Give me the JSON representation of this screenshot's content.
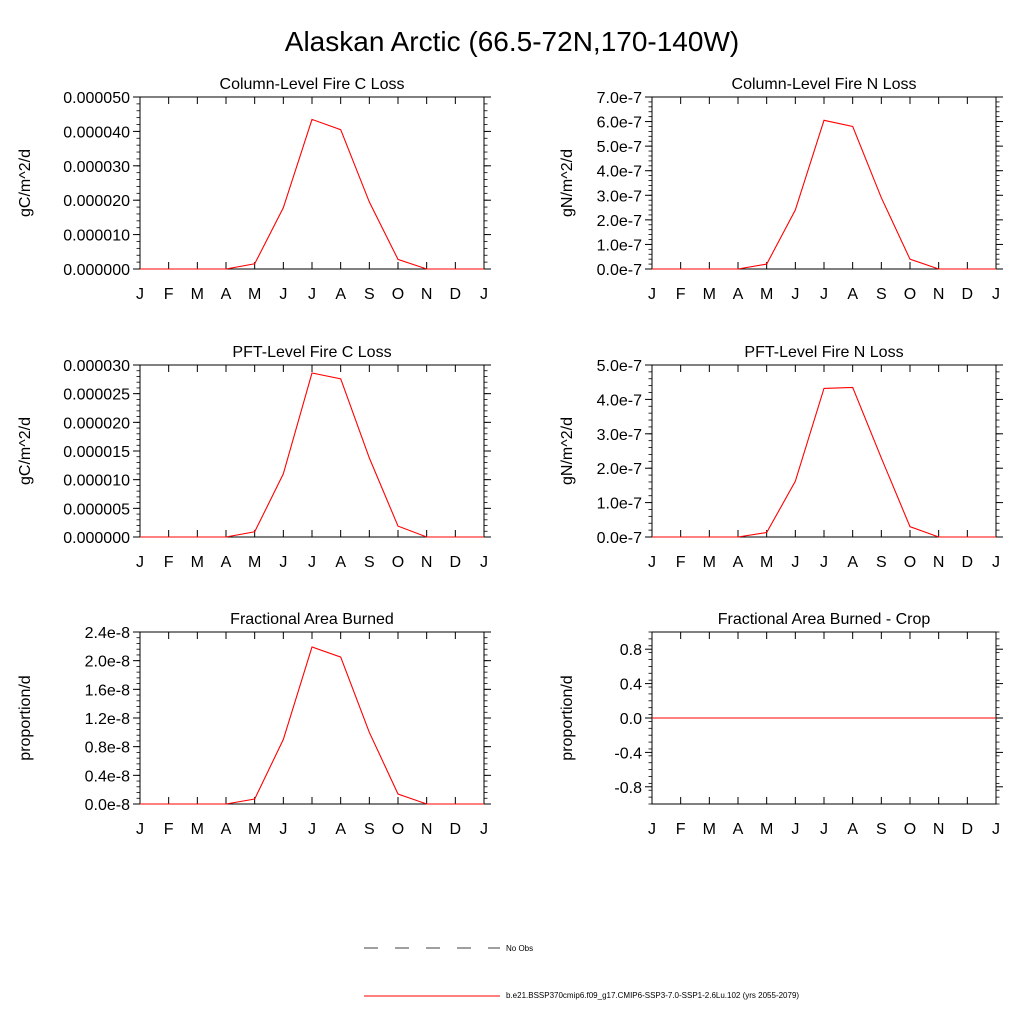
{
  "title": "Alaskan Arctic (66.5-72N,170-140W)",
  "months": [
    "J",
    "F",
    "M",
    "A",
    "M",
    "J",
    "J",
    "A",
    "S",
    "O",
    "N",
    "D",
    "J"
  ],
  "series_color": "#ff0000",
  "legend": {
    "obs_label": "No Obs",
    "model_label": "b.e21.BSSP370cmip6.f09_g17.CMIP6-SSP3-7.0-SSP1-2.6Lu.102 (yrs 2055-2079)"
  },
  "chart_data": [
    {
      "type": "line",
      "title": "Column-Level Fire C Loss",
      "ylabel": "gC/m^2/d",
      "ylim": [
        0,
        5e-05
      ],
      "yticks": [
        0,
        1e-05,
        2e-05,
        3e-05,
        4e-05,
        5e-05
      ],
      "ytick_labels": [
        "0.000000",
        "0.000010",
        "0.000020",
        "0.000030",
        "0.000040",
        "0.000050"
      ],
      "x": [
        "J",
        "F",
        "M",
        "A",
        "M",
        "J",
        "J",
        "A",
        "S",
        "O",
        "N",
        "D",
        "J"
      ],
      "values": [
        0,
        0,
        0,
        0,
        1.5e-06,
        1.78e-05,
        4.35e-05,
        4.05e-05,
        1.95e-05,
        2.8e-06,
        0,
        0,
        0
      ]
    },
    {
      "type": "line",
      "title": "Column-Level Fire N Loss",
      "ylabel": "gN/m^2/d",
      "ylim": [
        0,
        7e-07
      ],
      "yticks": [
        0,
        1e-07,
        2e-07,
        3e-07,
        4e-07,
        5e-07,
        6e-07,
        7e-07
      ],
      "ytick_labels": [
        "0.0e-7",
        "1.0e-7",
        "2.0e-7",
        "3.0e-7",
        "4.0e-7",
        "5.0e-7",
        "6.0e-7",
        "7.0e-7"
      ],
      "x": [
        "J",
        "F",
        "M",
        "A",
        "M",
        "J",
        "J",
        "A",
        "S",
        "O",
        "N",
        "D",
        "J"
      ],
      "values": [
        0,
        0,
        0,
        0,
        2e-08,
        2.4e-07,
        6.05e-07,
        5.8e-07,
        2.9e-07,
        4e-08,
        0,
        0,
        0
      ]
    },
    {
      "type": "line",
      "title": "PFT-Level Fire C Loss",
      "ylabel": "gC/m^2/d",
      "ylim": [
        0,
        3e-05
      ],
      "yticks": [
        0,
        5e-06,
        1e-05,
        1.5e-05,
        2e-05,
        2.5e-05,
        3e-05
      ],
      "ytick_labels": [
        "0.000000",
        "0.000005",
        "0.000010",
        "0.000015",
        "0.000020",
        "0.000025",
        "0.000030"
      ],
      "x": [
        "J",
        "F",
        "M",
        "A",
        "M",
        "J",
        "J",
        "A",
        "S",
        "O",
        "N",
        "D",
        "J"
      ],
      "values": [
        0,
        0,
        0,
        0,
        9e-07,
        1.1e-05,
        2.86e-05,
        2.76e-05,
        1.38e-05,
        1.9e-06,
        0,
        0,
        0
      ]
    },
    {
      "type": "line",
      "title": "PFT-Level Fire N Loss",
      "ylabel": "gN/m^2/d",
      "ylim": [
        0,
        5e-07
      ],
      "yticks": [
        0,
        1e-07,
        2e-07,
        3e-07,
        4e-07,
        5e-07
      ],
      "ytick_labels": [
        "0.0e-7",
        "1.0e-7",
        "2.0e-7",
        "3.0e-7",
        "4.0e-7",
        "5.0e-7"
      ],
      "x": [
        "J",
        "F",
        "M",
        "A",
        "M",
        "J",
        "J",
        "A",
        "S",
        "O",
        "N",
        "D",
        "J"
      ],
      "values": [
        0,
        0,
        0,
        0,
        1.3e-08,
        1.62e-07,
        4.32e-07,
        4.35e-07,
        2.3e-07,
        3e-08,
        0,
        0,
        0
      ]
    },
    {
      "type": "line",
      "title": "Fractional Area Burned",
      "ylabel": "proportion/d",
      "ylim": [
        0,
        2.4e-08
      ],
      "yticks": [
        0,
        4e-09,
        8e-09,
        1.2e-08,
        1.6e-08,
        2e-08,
        2.4e-08
      ],
      "ytick_labels": [
        "0.0e-8",
        "0.4e-8",
        "0.8e-8",
        "1.2e-8",
        "1.6e-8",
        "2.0e-8",
        "2.4e-8"
      ],
      "x": [
        "J",
        "F",
        "M",
        "A",
        "M",
        "J",
        "J",
        "A",
        "S",
        "O",
        "N",
        "D",
        "J"
      ],
      "values": [
        0,
        0,
        0,
        0,
        7e-10,
        9e-09,
        2.19e-08,
        2.05e-08,
        1e-08,
        1.4e-09,
        0,
        0,
        0
      ]
    },
    {
      "type": "line",
      "title": "Fractional Area Burned - Crop",
      "ylabel": "proportion/d",
      "ylim": [
        -1,
        1
      ],
      "yticks": [
        -0.8,
        -0.4,
        0.0,
        0.4,
        0.8
      ],
      "ytick_labels": [
        "-0.8",
        "-0.4",
        "0.0",
        "0.4",
        "0.8"
      ],
      "x": [
        "J",
        "F",
        "M",
        "A",
        "M",
        "J",
        "J",
        "A",
        "S",
        "O",
        "N",
        "D",
        "J"
      ],
      "values": [
        0,
        0,
        0,
        0,
        0,
        0,
        0,
        0,
        0,
        0,
        0,
        0,
        0
      ]
    }
  ]
}
